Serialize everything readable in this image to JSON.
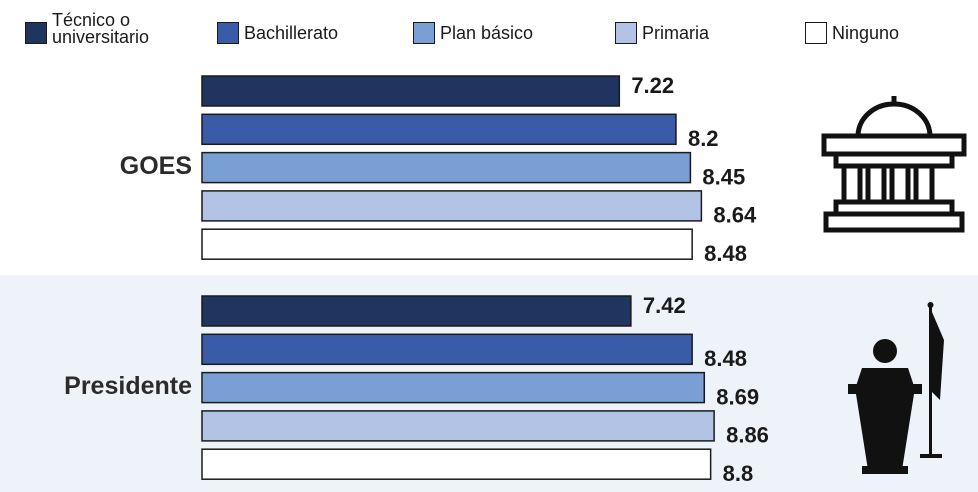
{
  "chart_data": {
    "type": "hbar",
    "categories": [
      "GOES",
      "Presidente"
    ],
    "series": [
      {
        "name": "Técnico o universitario",
        "color": "#1f3560",
        "values": [
          7.22,
          7.42
        ]
      },
      {
        "name": "Bachillerato",
        "color": "#3a5ba8",
        "values": [
          8.2,
          8.48
        ]
      },
      {
        "name": "Plan básico",
        "color": "#7a9fd4",
        "values": [
          8.45,
          8.69
        ]
      },
      {
        "name": "Primaria",
        "color": "#b3c3e6",
        "values": [
          8.64,
          8.86
        ]
      },
      {
        "name": "Ninguno",
        "color": "#ffffff",
        "values": [
          8.48,
          8.8
        ]
      }
    ],
    "xlim": [
      0,
      10
    ]
  }
}
